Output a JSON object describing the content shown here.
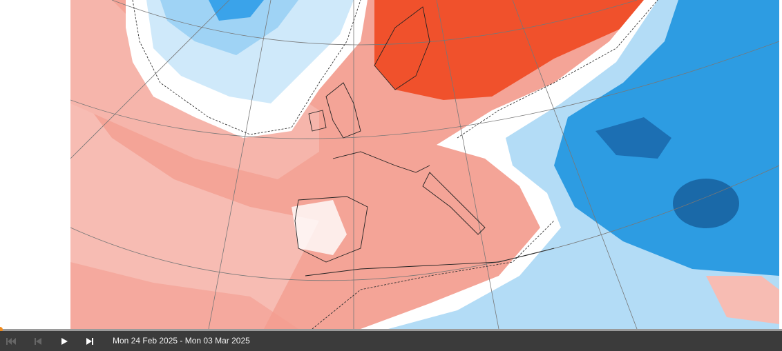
{
  "player": {
    "date_range": "Mon 24 Feb 2025 - Mon 03 Mar 2025"
  }
}
